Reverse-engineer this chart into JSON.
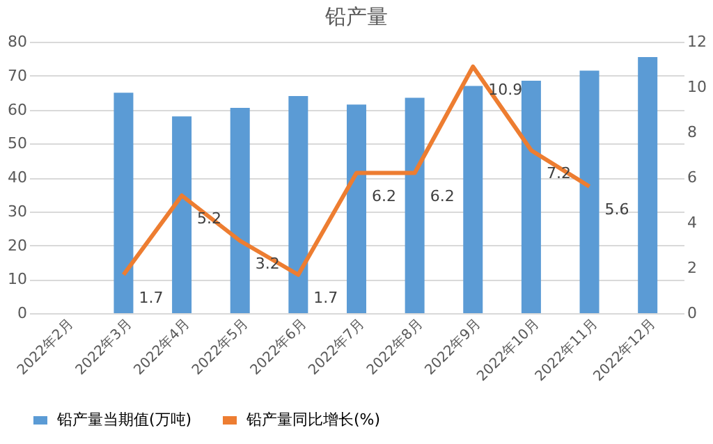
{
  "chart_data": {
    "type": "bar",
    "title": "铅产量",
    "categories": [
      "2022年2月",
      "2022年3月",
      "2022年4月",
      "2022年5月",
      "2022年6月",
      "2022年7月",
      "2022年8月",
      "2022年9月",
      "2022年10月",
      "2022年11月",
      "2022年12月"
    ],
    "series": [
      {
        "name": "铅产量当期值(万吨)",
        "color": "#5b9bd5",
        "values": [
          null,
          65,
          58,
          60.5,
          64,
          61.5,
          63.5,
          67,
          68.5,
          71.5,
          75.5
        ]
      },
      {
        "name": "铅产量同比增长(%)",
        "type": "line",
        "axis": "y2",
        "color": "#ed7d31",
        "values": [
          null,
          1.7,
          5.2,
          3.2,
          1.7,
          6.2,
          6.2,
          10.9,
          7.2,
          5.6,
          null
        ],
        "value_labels": [
          null,
          "1.7",
          "5.2",
          "3.2",
          "1.7",
          "6.2",
          "6.2",
          "10.9",
          "7.2",
          "5.6",
          null
        ]
      }
    ],
    "ylim": [
      0,
      80
    ],
    "yticks": [
      0,
      10,
      20,
      30,
      40,
      50,
      60,
      70,
      80
    ],
    "y2lim": [
      0,
      12
    ],
    "y2ticks": [
      0,
      2,
      4,
      6,
      8,
      10,
      12
    ],
    "grid": "y",
    "legend": "bottom"
  }
}
